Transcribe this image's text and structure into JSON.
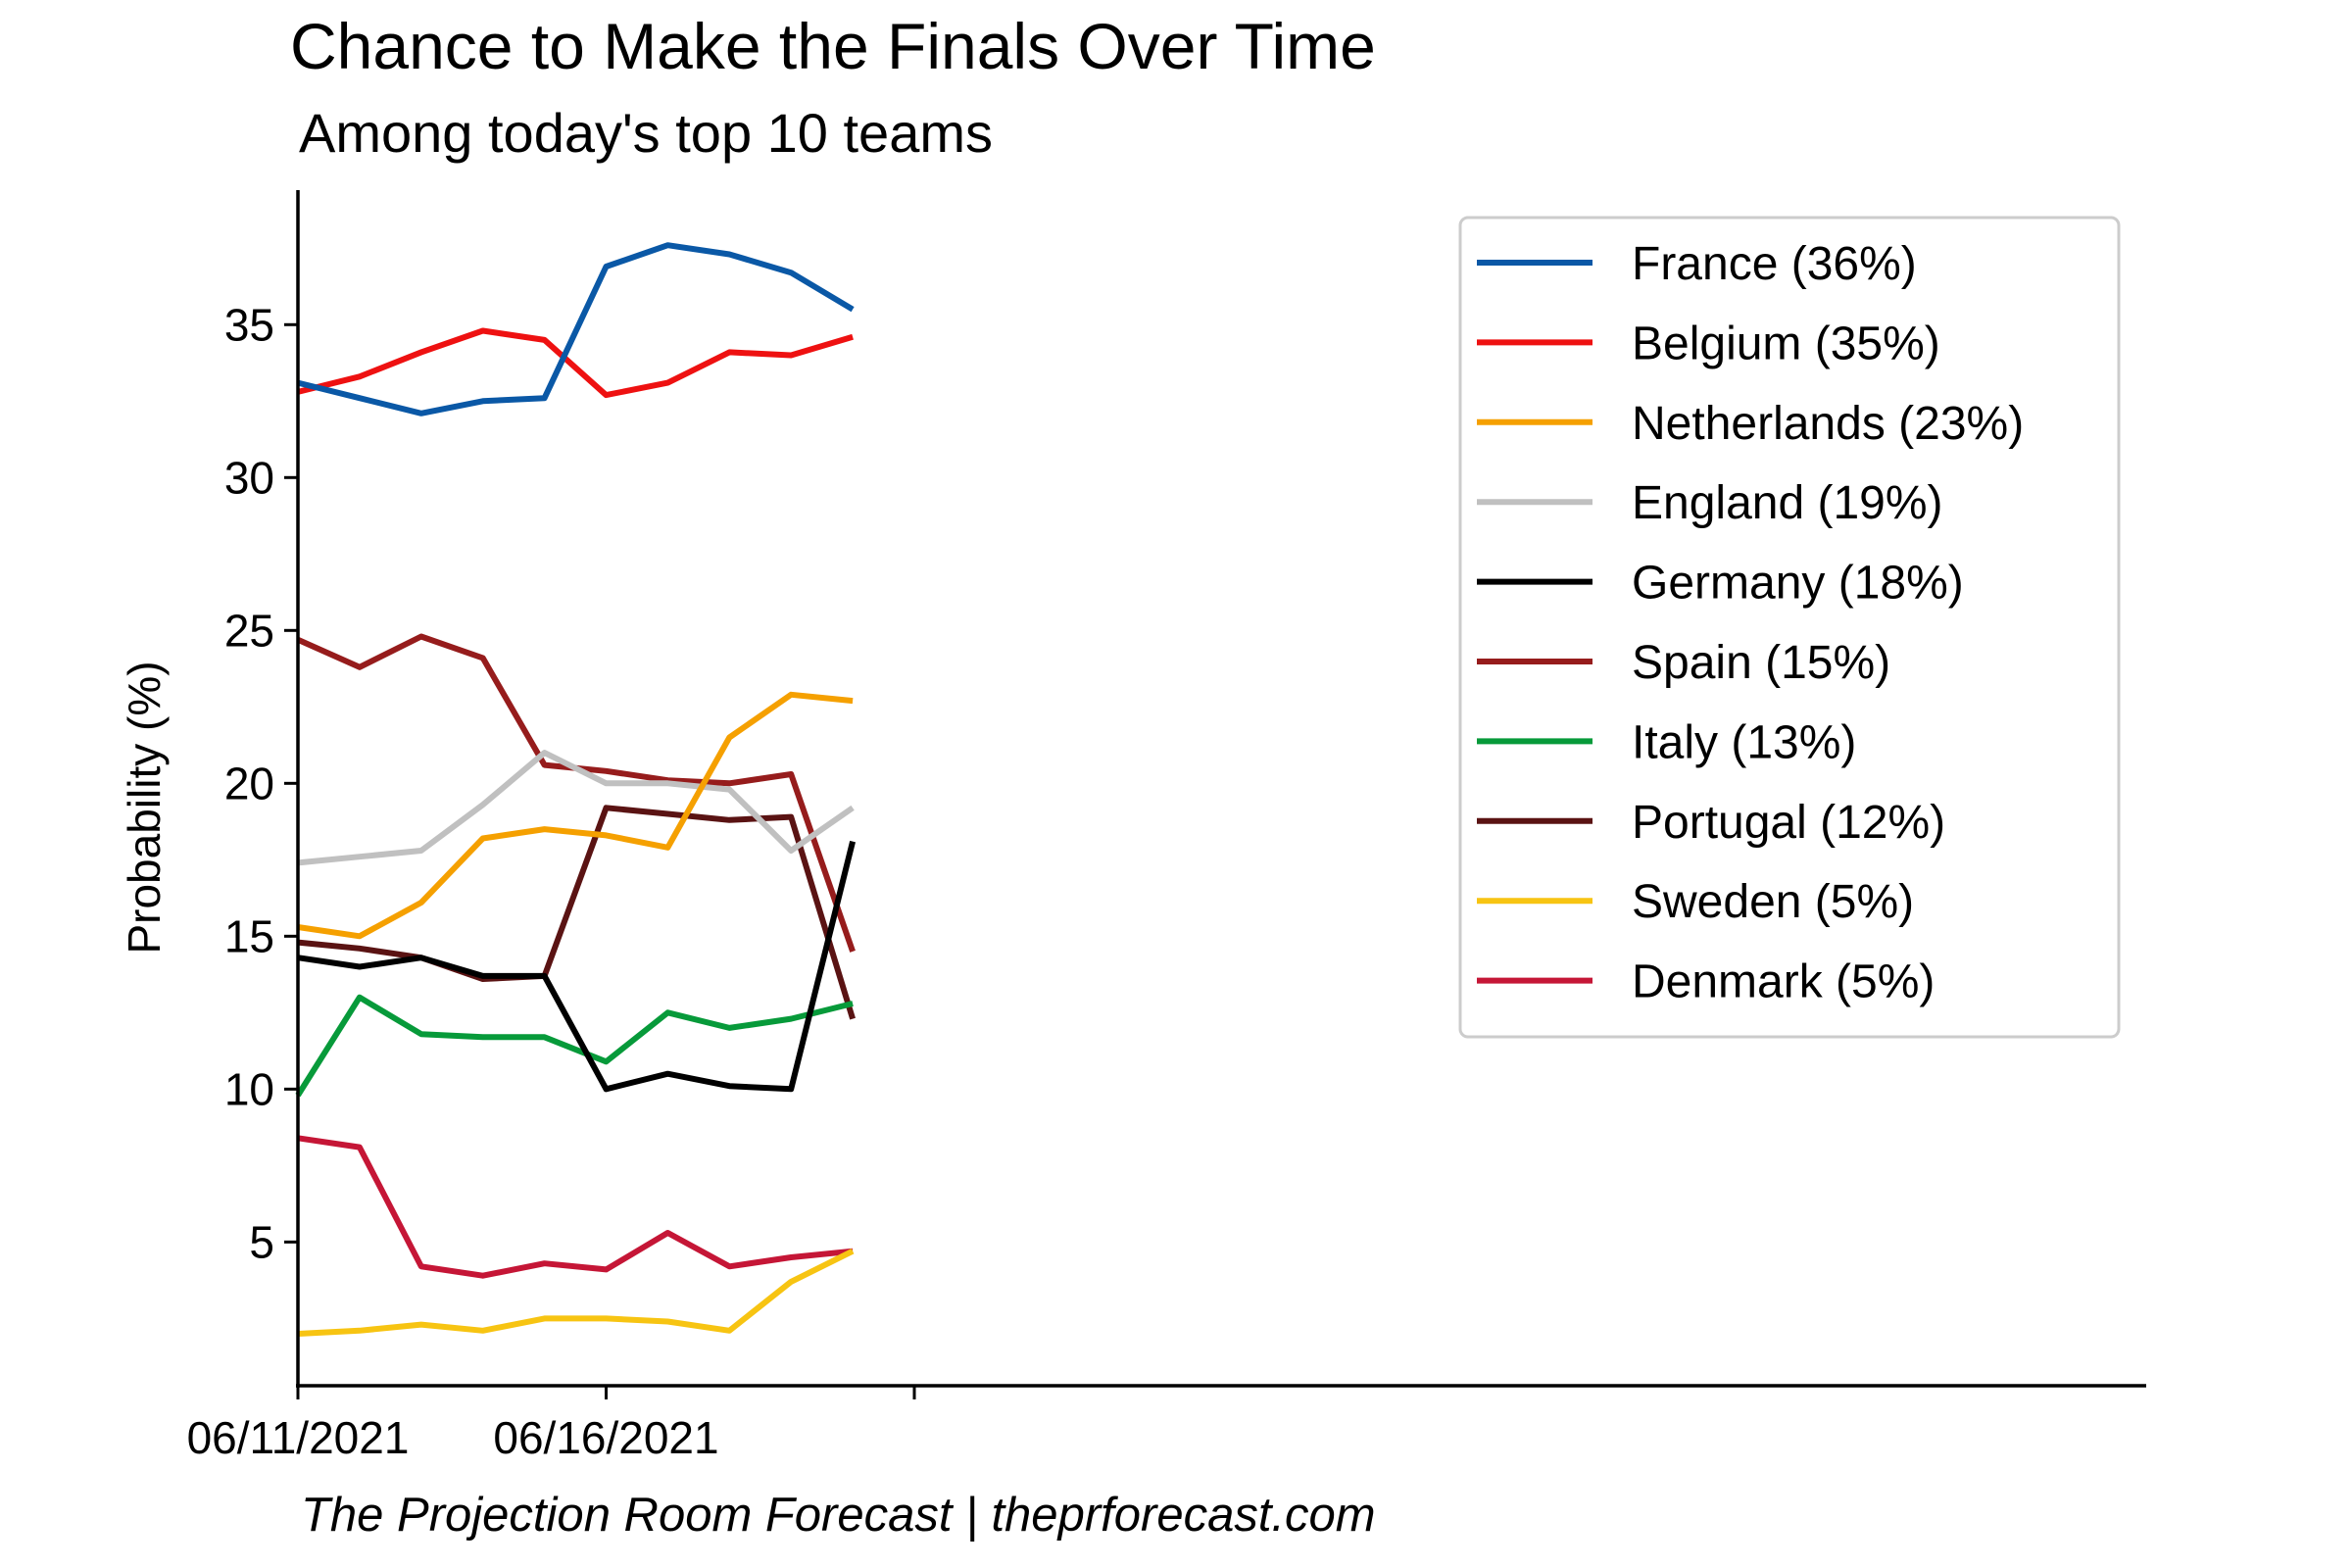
{
  "chart_data": {
    "type": "line",
    "title": "Chance to Make the Finals Over Time",
    "subtitle": "Among today's top 10 teams",
    "xlabel": "",
    "ylabel": "Probability (%)",
    "ylim": [
      0.3,
      39.4
    ],
    "x": [
      "06/11/2021",
      "06/12/2021",
      "06/13/2021",
      "06/14/2021",
      "06/15/2021",
      "06/16/2021",
      "06/17/2021",
      "06/18/2021",
      "06/19/2021",
      "06/20/2021"
    ],
    "x_tick_labels": [
      "06/11/2021",
      "06/16/2021",
      ""
    ],
    "y_ticks": [
      5,
      10,
      15,
      20,
      25,
      30,
      35
    ],
    "y_tick_labels": [
      "5",
      "10",
      "15",
      "20",
      "25",
      "30",
      "35"
    ],
    "legend_placement": "upper-right",
    "grid": false,
    "series": [
      {
        "name": "France (36%)",
        "color": "#0a58a6",
        "values": [
          33.1,
          32.6,
          32.1,
          32.5,
          32.6,
          36.9,
          37.6,
          37.3,
          36.7,
          35.5
        ]
      },
      {
        "name": "Belgium (35%)",
        "color": "#ee1111",
        "values": [
          32.8,
          33.3,
          34.1,
          34.8,
          34.5,
          32.7,
          33.1,
          34.1,
          34.0,
          34.6
        ]
      },
      {
        "name": "Netherlands (23%)",
        "color": "#f5a000",
        "values": [
          15.3,
          15.0,
          16.1,
          18.2,
          18.5,
          18.3,
          17.9,
          21.5,
          22.9,
          22.7
        ]
      },
      {
        "name": "England (19%)",
        "color": "#c0c0c0",
        "values": [
          17.4,
          17.6,
          17.8,
          19.3,
          21.0,
          20.0,
          20.0,
          19.8,
          17.8,
          19.2
        ]
      },
      {
        "name": "Germany (18%)",
        "color": "#000000",
        "values": [
          14.3,
          14.0,
          14.3,
          13.7,
          13.7,
          10.0,
          10.5,
          10.1,
          10.0,
          18.1
        ]
      },
      {
        "name": "Spain (15%)",
        "color": "#961c1c",
        "values": [
          24.7,
          23.8,
          24.8,
          24.1,
          20.6,
          20.4,
          20.1,
          20.0,
          20.3,
          14.5
        ]
      },
      {
        "name": "Italy (13%)",
        "color": "#079a3a",
        "values": [
          9.8,
          13.0,
          11.8,
          11.7,
          11.7,
          10.9,
          12.5,
          12.0,
          12.3,
          12.8
        ]
      },
      {
        "name": "Portugal (12%)",
        "color": "#5a1313",
        "values": [
          14.8,
          14.6,
          14.3,
          13.6,
          13.7,
          19.2,
          19.0,
          18.8,
          18.9,
          12.3
        ]
      },
      {
        "name": "Sweden (5%)",
        "color": "#f7c412",
        "values": [
          2.0,
          2.1,
          2.3,
          2.1,
          2.5,
          2.5,
          2.4,
          2.1,
          3.7,
          4.7
        ]
      },
      {
        "name": "Denmark (5%)",
        "color": "#c51636",
        "values": [
          8.4,
          8.1,
          4.2,
          3.9,
          4.3,
          4.1,
          5.3,
          4.2,
          4.5,
          4.7
        ]
      }
    ]
  },
  "footer": "The Projection Room Forecast | theprforecast.com"
}
